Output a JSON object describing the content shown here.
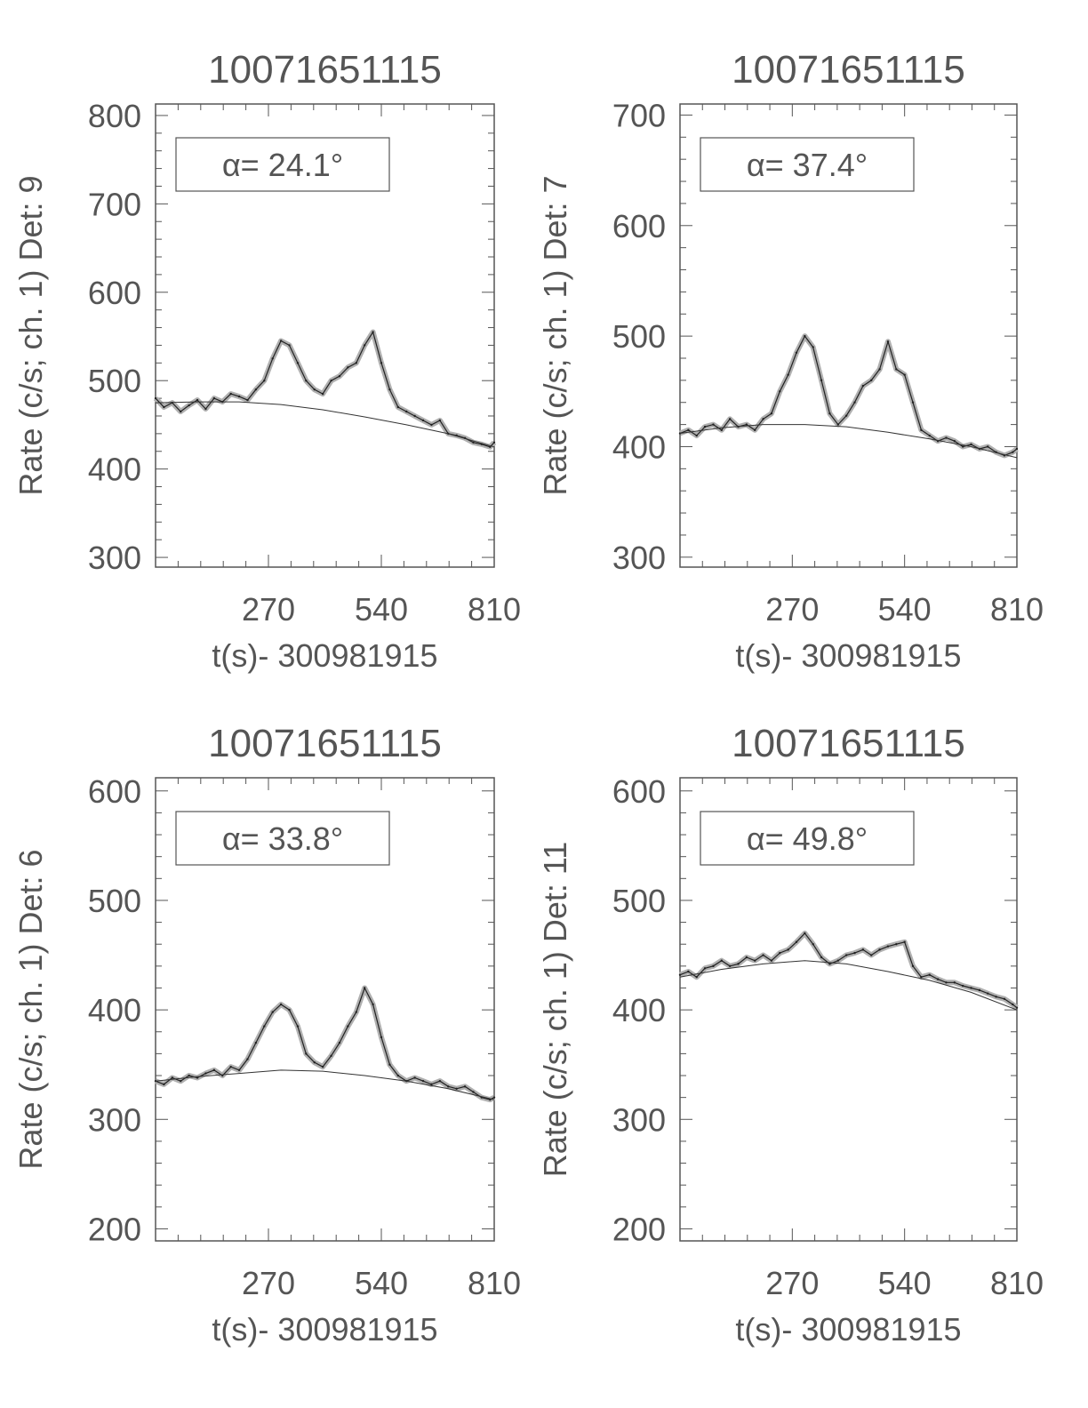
{
  "chart_data": [
    {
      "type": "line",
      "title": "10071651115",
      "xlabel": "t(s)- 300981915",
      "ylabel": "Rate (c/s; ch. 1) Det: 9",
      "annotation": "α= 24.1°",
      "xlim": [
        0,
        810
      ],
      "ylim": [
        289,
        813
      ],
      "xticks": [
        270,
        540,
        810
      ],
      "yticks": [
        300,
        400,
        500,
        600,
        700,
        800
      ],
      "x": [
        0,
        20,
        40,
        60,
        80,
        100,
        120,
        140,
        160,
        180,
        200,
        220,
        240,
        260,
        280,
        300,
        320,
        340,
        360,
        380,
        400,
        420,
        440,
        460,
        480,
        500,
        520,
        540,
        560,
        580,
        600,
        620,
        640,
        660,
        680,
        700,
        720,
        740,
        760,
        780,
        800,
        810
      ],
      "series": [
        {
          "values": [
            480,
            470,
            475,
            465,
            472,
            478,
            468,
            480,
            476,
            485,
            482,
            478,
            490,
            500,
            525,
            545,
            540,
            520,
            500,
            490,
            485,
            500,
            505,
            515,
            520,
            540,
            555,
            520,
            490,
            470,
            465,
            460,
            455,
            450,
            455,
            440,
            438,
            435,
            430,
            428,
            425,
            430
          ]
        }
      ],
      "background_fit": {
        "x": [
          0,
          100,
          200,
          300,
          400,
          500,
          600,
          700,
          810
        ],
        "y": [
          475,
          476,
          476,
          473,
          467,
          459,
          450,
          440,
          425
        ]
      }
    },
    {
      "type": "line",
      "title": "10071651115",
      "xlabel": "t(s)- 300981915",
      "ylabel": "Rate (c/s; ch. 1) Det: 7",
      "annotation": "α= 37.4°",
      "xlim": [
        0,
        810
      ],
      "ylim": [
        291,
        710
      ],
      "xticks": [
        270,
        540,
        810
      ],
      "yticks": [
        300,
        400,
        500,
        600,
        700
      ],
      "x": [
        0,
        20,
        40,
        60,
        80,
        100,
        120,
        140,
        160,
        180,
        200,
        220,
        240,
        260,
        280,
        300,
        320,
        340,
        360,
        380,
        400,
        420,
        440,
        460,
        480,
        500,
        520,
        540,
        560,
        580,
        600,
        620,
        640,
        660,
        680,
        700,
        720,
        740,
        760,
        780,
        800,
        810
      ],
      "series": [
        {
          "values": [
            412,
            415,
            410,
            418,
            420,
            415,
            425,
            418,
            420,
            415,
            425,
            430,
            450,
            465,
            485,
            500,
            490,
            460,
            430,
            420,
            428,
            440,
            455,
            460,
            470,
            495,
            470,
            465,
            440,
            415,
            410,
            405,
            408,
            405,
            400,
            402,
            398,
            400,
            395,
            392,
            395,
            398
          ]
        }
      ],
      "background_fit": {
        "x": [
          0,
          100,
          200,
          300,
          400,
          500,
          600,
          700,
          810
        ],
        "y": [
          412,
          417,
          420,
          420,
          418,
          413,
          407,
          400,
          390
        ]
      }
    },
    {
      "type": "line",
      "title": "10071651115",
      "xlabel": "t(s)- 300981915",
      "ylabel": "Rate (c/s; ch. 1) Det: 6",
      "annotation": "α= 33.8°",
      "xlim": [
        0,
        810
      ],
      "ylim": [
        189,
        612
      ],
      "xticks": [
        270,
        540,
        810
      ],
      "yticks": [
        200,
        300,
        400,
        500,
        600
      ],
      "x": [
        0,
        20,
        40,
        60,
        80,
        100,
        120,
        140,
        160,
        180,
        200,
        220,
        240,
        260,
        280,
        300,
        320,
        340,
        360,
        380,
        400,
        420,
        440,
        460,
        480,
        500,
        520,
        540,
        560,
        580,
        600,
        620,
        640,
        660,
        680,
        700,
        720,
        740,
        760,
        780,
        800,
        810
      ],
      "series": [
        {
          "values": [
            335,
            332,
            338,
            335,
            340,
            338,
            342,
            345,
            340,
            348,
            345,
            355,
            370,
            385,
            398,
            405,
            400,
            385,
            360,
            352,
            348,
            358,
            370,
            385,
            398,
            420,
            405,
            375,
            350,
            340,
            335,
            338,
            335,
            332,
            335,
            330,
            328,
            330,
            325,
            320,
            318,
            320
          ]
        }
      ],
      "background_fit": {
        "x": [
          0,
          100,
          200,
          300,
          400,
          500,
          600,
          700,
          810
        ],
        "y": [
          335,
          339,
          342,
          345,
          344,
          340,
          335,
          328,
          318
        ]
      }
    },
    {
      "type": "line",
      "title": "10071651115",
      "xlabel": "t(s)- 300981915",
      "ylabel": "Rate (c/s; ch. 1) Det: 11",
      "annotation": "α= 49.8°",
      "xlim": [
        0,
        810
      ],
      "ylim": [
        189,
        612
      ],
      "xticks": [
        270,
        540,
        810
      ],
      "yticks": [
        200,
        300,
        400,
        500,
        600
      ],
      "x": [
        0,
        20,
        40,
        60,
        80,
        100,
        120,
        140,
        160,
        180,
        200,
        220,
        240,
        260,
        280,
        300,
        320,
        340,
        360,
        380,
        400,
        420,
        440,
        460,
        480,
        500,
        520,
        540,
        560,
        580,
        600,
        620,
        640,
        660,
        680,
        700,
        720,
        740,
        760,
        780,
        800,
        810
      ],
      "series": [
        {
          "values": [
            432,
            435,
            430,
            438,
            440,
            445,
            440,
            442,
            448,
            445,
            450,
            445,
            452,
            455,
            462,
            470,
            460,
            448,
            442,
            445,
            450,
            452,
            455,
            450,
            455,
            458,
            460,
            462,
            440,
            430,
            432,
            428,
            425,
            425,
            422,
            420,
            418,
            415,
            412,
            410,
            405,
            402
          ]
        }
      ],
      "background_fit": {
        "x": [
          0,
          100,
          200,
          300,
          400,
          500,
          600,
          700,
          810
        ],
        "y": [
          430,
          437,
          442,
          445,
          442,
          435,
          427,
          416,
          400
        ]
      }
    }
  ],
  "colors": {
    "data_line": "#222222",
    "error_band": "#b0b0b0",
    "axes": "#555555"
  }
}
